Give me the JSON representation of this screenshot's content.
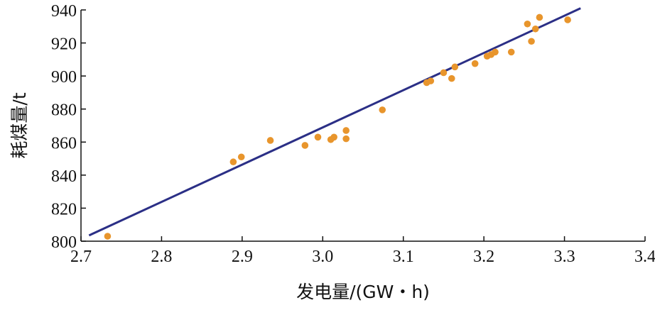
{
  "colors": {
    "points": "#e8952c",
    "fit_line": "#2b2f86",
    "axis": "#111111"
  },
  "chart_data": {
    "type": "scatter",
    "title": "",
    "xlabel": "发电量/(GW・h)",
    "ylabel": "耗煤量/t",
    "xlim": [
      2.7,
      3.4
    ],
    "ylim": [
      800,
      940
    ],
    "x_ticks": [
      "2.7",
      "2.8",
      "2.9",
      "3.0",
      "3.1",
      "3.2",
      "3.3",
      "3.4"
    ],
    "y_ticks": [
      "800",
      "820",
      "840",
      "860",
      "880",
      "900",
      "920",
      "940"
    ],
    "grid": false,
    "legend": "none",
    "points": [
      {
        "x": 2.733,
        "y": 803
      },
      {
        "x": 2.889,
        "y": 848
      },
      {
        "x": 2.899,
        "y": 851
      },
      {
        "x": 2.935,
        "y": 861
      },
      {
        "x": 2.978,
        "y": 858
      },
      {
        "x": 2.994,
        "y": 863
      },
      {
        "x": 3.01,
        "y": 861.5
      },
      {
        "x": 3.014,
        "y": 863
      },
      {
        "x": 3.029,
        "y": 867
      },
      {
        "x": 3.029,
        "y": 862
      },
      {
        "x": 3.074,
        "y": 879.5
      },
      {
        "x": 3.129,
        "y": 896
      },
      {
        "x": 3.134,
        "y": 897
      },
      {
        "x": 3.15,
        "y": 902
      },
      {
        "x": 3.16,
        "y": 898.5
      },
      {
        "x": 3.164,
        "y": 905.5
      },
      {
        "x": 3.189,
        "y": 907.5
      },
      {
        "x": 3.204,
        "y": 912
      },
      {
        "x": 3.209,
        "y": 913
      },
      {
        "x": 3.214,
        "y": 914.5
      },
      {
        "x": 3.234,
        "y": 914.5
      },
      {
        "x": 3.254,
        "y": 931.5
      },
      {
        "x": 3.259,
        "y": 921
      },
      {
        "x": 3.264,
        "y": 928.5
      },
      {
        "x": 3.269,
        "y": 935.5
      },
      {
        "x": 3.304,
        "y": 934
      }
    ],
    "fit_line": {
      "x": [
        2.71,
        3.32
      ],
      "y": [
        803.5,
        941
      ]
    }
  }
}
